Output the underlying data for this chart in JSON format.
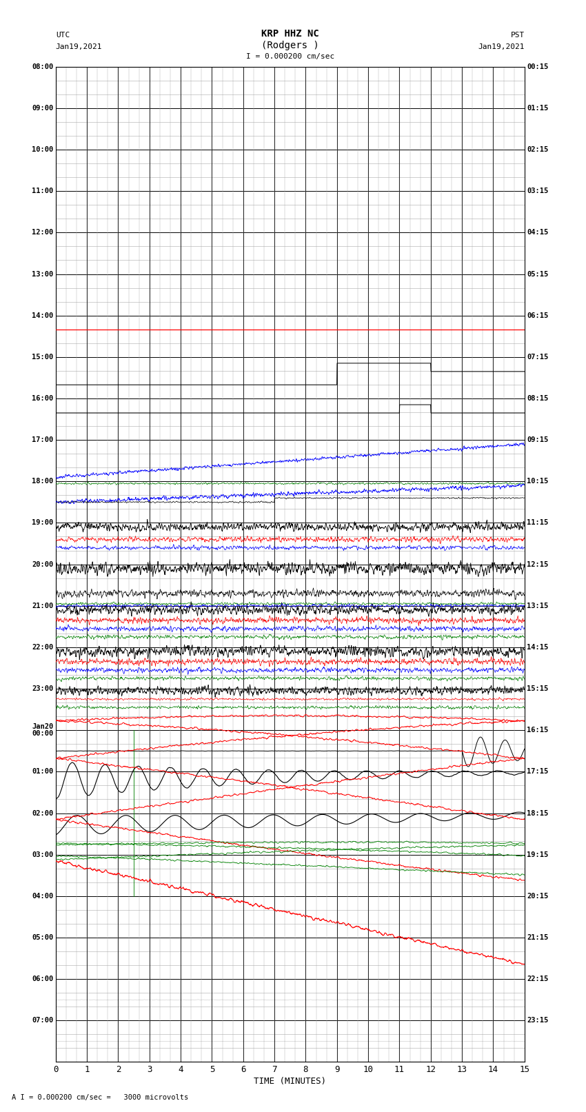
{
  "title_line1": "KRP HHZ NC",
  "title_line2": "(Rodgers )",
  "scale_label": "I = 0.000200 cm/sec",
  "bottom_label": "A I = 0.000200 cm/sec =   3000 microvolts",
  "xlabel": "TIME (MINUTES)",
  "left_label_top1": "UTC",
  "left_label_top2": "Jan19,2021",
  "right_label_top1": "PST",
  "right_label_top2": "Jan19,2021",
  "left_yticks": [
    "08:00",
    "09:00",
    "10:00",
    "11:00",
    "12:00",
    "13:00",
    "14:00",
    "15:00",
    "16:00",
    "17:00",
    "18:00",
    "19:00",
    "20:00",
    "21:00",
    "22:00",
    "23:00",
    "Jan20\n00:00",
    "01:00",
    "02:00",
    "03:00",
    "04:00",
    "05:00",
    "06:00",
    "07:00"
  ],
  "right_yticks": [
    "00:15",
    "01:15",
    "02:15",
    "03:15",
    "04:15",
    "05:15",
    "06:15",
    "07:15",
    "08:15",
    "09:15",
    "10:15",
    "11:15",
    "12:15",
    "13:15",
    "14:15",
    "15:15",
    "16:15",
    "17:15",
    "18:15",
    "19:15",
    "20:15",
    "21:15",
    "22:15",
    "23:15"
  ],
  "xticks": [
    0,
    1,
    2,
    3,
    4,
    5,
    6,
    7,
    8,
    9,
    10,
    11,
    12,
    13,
    14,
    15
  ],
  "num_rows": 24,
  "bg_color": "#ffffff",
  "grid_major_color": "#000000",
  "grid_minor_color": "#aaaaaa",
  "trace_colors": [
    "#000000",
    "#ff0000",
    "#0000ff",
    "#008000"
  ],
  "figure_width": 8.5,
  "figure_height": 16.13,
  "dpi": 100
}
